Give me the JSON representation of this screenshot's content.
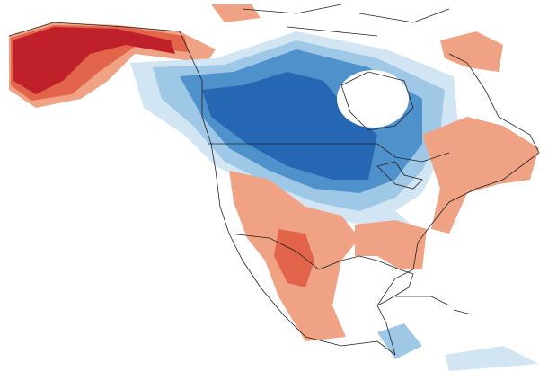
{
  "map": {
    "palette": {
      "strong_warm": "#c0202a",
      "warm": "#e2644a",
      "mild_warm": "#f0a384",
      "slight_warm": "#f8d2c0",
      "slight_cool": "#d2e5f3",
      "mild_cool": "#9ec8e6",
      "cool": "#4f91cb",
      "strong_cool": "#2567b2",
      "background": "#ffffff",
      "outline": "#222222"
    }
  }
}
